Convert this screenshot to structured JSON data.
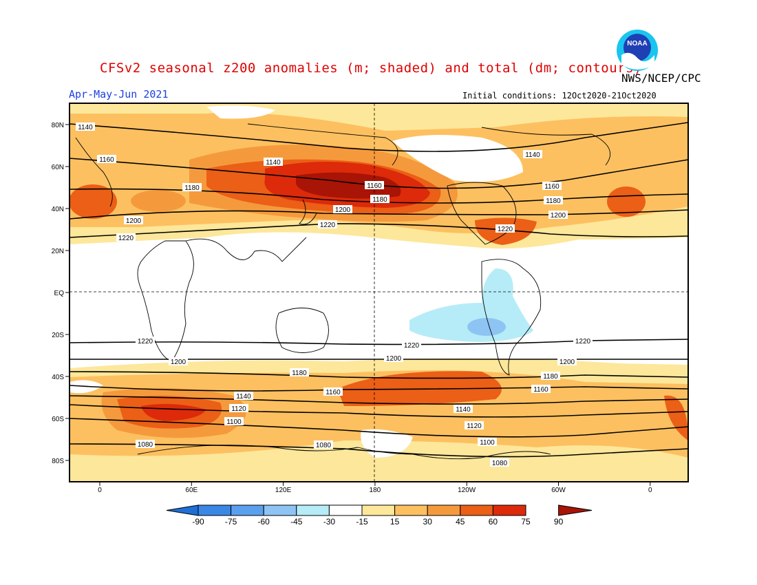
{
  "header": {
    "title": "CFSv2 seasonal z200 anomalies (m; shaded) and total (dm; contours)",
    "org": "NWS/NCEP/CPC",
    "season": "Apr-May-Jun 2021",
    "initial_conditions": "Initial conditions: 12Oct2020-21Oct2020",
    "logo_text": "NOAA"
  },
  "axes": {
    "lat_labels": [
      "80N",
      "60N",
      "40N",
      "20N",
      "EQ",
      "20S",
      "40S",
      "60S",
      "80S"
    ],
    "lon_labels": [
      "0",
      "60E",
      "120E",
      "180",
      "120W",
      "60W",
      "0"
    ]
  },
  "colorbar": {
    "ticks": [
      "-90",
      "-75",
      "-60",
      "-45",
      "-30",
      "-15",
      "15",
      "30",
      "45",
      "60",
      "75",
      "90"
    ],
    "colors": [
      "#1f6fd6",
      "#3a87e6",
      "#5aa0ee",
      "#8ec4f4",
      "#b6ecf7",
      "#ffffff",
      "#fde79a",
      "#fdc060",
      "#f59a3c",
      "#eb5f16",
      "#dc2a0a",
      "#a81405"
    ]
  },
  "map": {
    "anomaly_colors": {
      "c15": "#fde79a",
      "c30": "#fdc060",
      "c45": "#f59a3c",
      "c60": "#eb5f16",
      "c75": "#dc2a0a",
      "c90": "#a81405",
      "n15": "#b6ecf7",
      "n30": "#8ec4f4"
    },
    "contour_labels": {
      "c1140": "1140",
      "c1160": "1160",
      "c1180": "1180",
      "c1200": "1200",
      "c1220": "1220",
      "c1120": "1120",
      "c1100": "1100",
      "c1080": "1080"
    }
  }
}
